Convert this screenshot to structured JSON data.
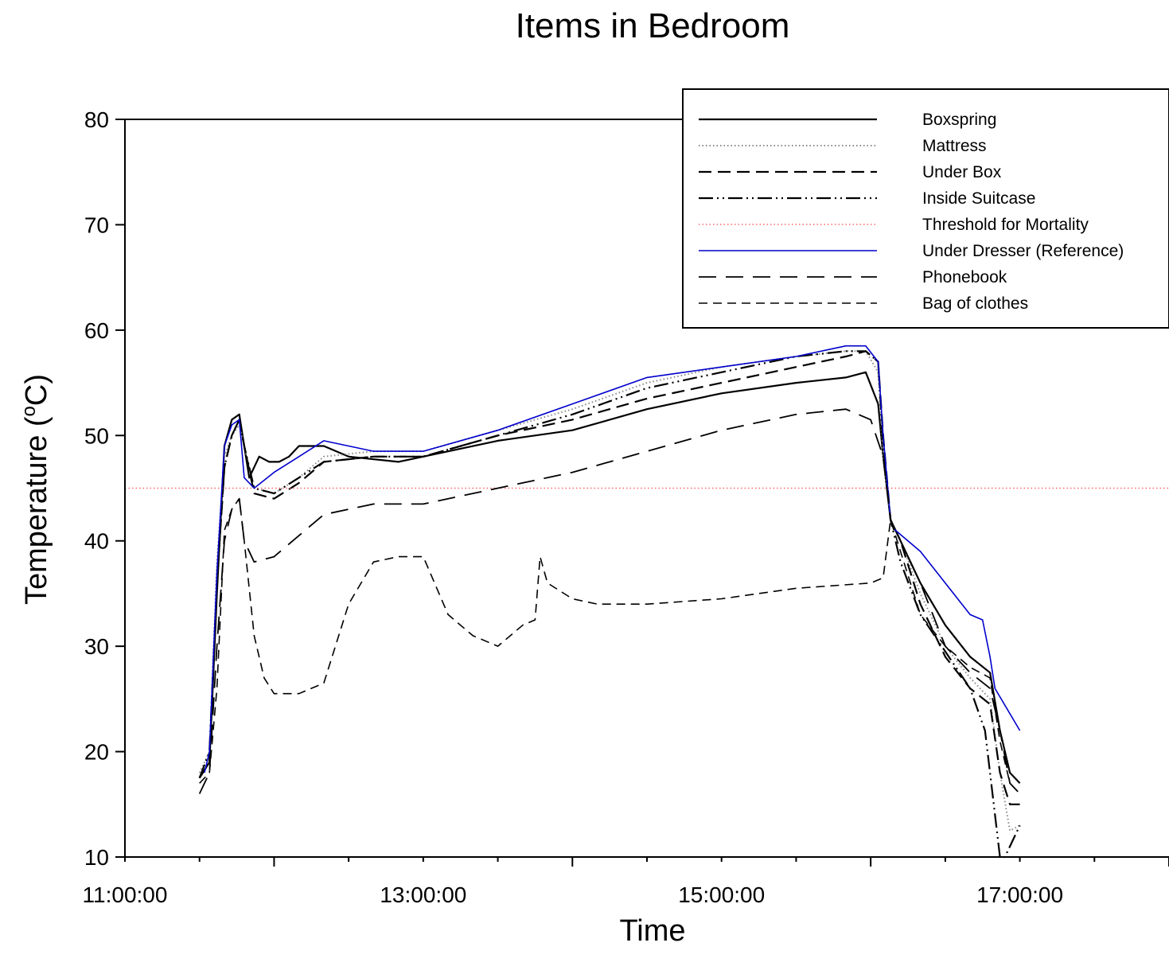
{
  "chart_data": {
    "type": "line",
    "title": "Items in Bedroom",
    "xlabel": "Time",
    "ylabel": "Temperature (°C)",
    "ylabel_parts": {
      "main": "Temperature (",
      "sup": "o",
      "unit": "C)"
    },
    "xlim": [
      "11:00:00",
      "18:00:00"
    ],
    "ylim": [
      10,
      80
    ],
    "x_ticks_major": [
      "11:00:00",
      "13:00:00",
      "15:00:00",
      "17:00:00"
    ],
    "x_tick_labels": [
      "11:00:00",
      "13:00:00",
      "15:00:00",
      "17:00:00"
    ],
    "y_ticks": [
      "10",
      "20",
      "30",
      "40",
      "50",
      "60",
      "70",
      "80"
    ],
    "grid": false,
    "legend_position": "top-right",
    "series": [
      {
        "name": "Boxspring",
        "color": "#000000",
        "dash": "none",
        "width": 2.2,
        "x": [
          "11:30",
          "11:34",
          "11:37",
          "11:40",
          "11:43",
          "11:46",
          "11:48",
          "11:50",
          "11:54",
          "11:58",
          "12:02",
          "12:06",
          "12:10",
          "12:20",
          "12:30",
          "12:50",
          "13:00",
          "13:30",
          "14:00",
          "14:30",
          "15:00",
          "15:30",
          "15:50",
          "15:58",
          "16:03",
          "16:05",
          "16:08",
          "16:12",
          "16:20",
          "16:30",
          "16:40",
          "16:48",
          "16:52",
          "16:56",
          "17:00"
        ],
        "y": [
          17.5,
          19,
          35,
          49,
          51.5,
          52,
          49,
          46,
          48,
          47.5,
          47.5,
          48,
          49,
          49,
          48,
          47.5,
          48,
          49.5,
          50.5,
          52.5,
          54,
          55,
          55.5,
          56,
          53,
          48,
          42,
          40,
          36,
          32,
          29,
          27.5,
          22,
          18,
          17
        ]
      },
      {
        "name": "Mattress",
        "color": "#888888",
        "dash": "1.5,3",
        "width": 2,
        "x": [
          "11:30",
          "11:34",
          "11:37",
          "11:40",
          "11:43",
          "11:46",
          "11:48",
          "11:52",
          "12:00",
          "12:10",
          "12:20",
          "12:40",
          "13:00",
          "13:30",
          "14:00",
          "14:30",
          "15:00",
          "15:30",
          "15:50",
          "15:58",
          "16:03",
          "16:05",
          "16:08",
          "16:12",
          "16:20",
          "16:30",
          "16:40",
          "16:48",
          "16:52",
          "16:56",
          "17:00"
        ],
        "y": [
          18,
          20,
          38,
          48,
          50,
          51,
          49,
          45,
          44.5,
          46,
          48,
          48.5,
          48.5,
          50.5,
          52.5,
          55,
          56.5,
          57.5,
          58,
          58,
          56,
          48,
          42,
          40,
          35,
          30,
          27,
          25,
          18,
          12.5,
          13
        ]
      },
      {
        "name": "Under Box",
        "color": "#000000",
        "dash": "16,8",
        "width": 2.2,
        "x": [
          "11:30",
          "11:34",
          "11:37",
          "11:40",
          "11:43",
          "11:46",
          "11:48",
          "11:52",
          "12:00",
          "12:10",
          "12:20",
          "12:40",
          "13:00",
          "13:30",
          "14:00",
          "14:30",
          "15:00",
          "15:30",
          "15:50",
          "15:58",
          "16:03",
          "16:05",
          "16:08",
          "16:12",
          "16:20",
          "16:30",
          "16:40",
          "16:48",
          "16:52",
          "16:56",
          "17:00"
        ],
        "y": [
          17.5,
          19,
          36,
          47,
          50,
          51.5,
          49,
          44.5,
          44,
          45.5,
          47.5,
          48,
          48,
          50,
          51.5,
          53.5,
          55,
          56.5,
          57.5,
          58,
          57,
          50,
          42,
          40,
          34,
          29,
          26,
          24.5,
          18,
          15,
          15
        ]
      },
      {
        "name": "Inside Suitcase",
        "color": "#000000",
        "dash": "18,5,2,5,2,5",
        "width": 2.2,
        "x": [
          "11:30",
          "11:34",
          "11:37",
          "11:40",
          "11:43",
          "11:46",
          "11:48",
          "11:52",
          "12:00",
          "12:10",
          "12:20",
          "12:40",
          "13:00",
          "13:30",
          "14:00",
          "14:30",
          "15:00",
          "15:30",
          "15:50",
          "15:58",
          "16:03",
          "16:05",
          "16:08",
          "16:12",
          "16:20",
          "16:30",
          "16:40",
          "16:46",
          "16:48",
          "16:52",
          "16:54",
          "16:58",
          "17:00"
        ],
        "y": [
          17.5,
          20,
          36,
          47,
          50,
          51.5,
          49,
          45,
          44.5,
          46,
          47.5,
          48,
          48,
          50,
          52,
          54.5,
          56,
          57.5,
          58,
          58,
          57,
          49,
          42,
          38,
          33,
          29.5,
          26,
          22,
          18,
          10,
          10,
          12,
          13
        ]
      },
      {
        "name": "Threshold for Mortality",
        "color": "#ff6666",
        "dash": "1.5,3",
        "width": 1.5,
        "x": [
          "11:00",
          "18:00"
        ],
        "y": [
          45,
          45
        ]
      },
      {
        "name": "Under Dresser (Reference)",
        "color": "#0000cc",
        "dash": "none",
        "width": 1.6,
        "x": [
          "11:32",
          "11:34",
          "11:37",
          "11:40",
          "11:43",
          "11:46",
          "11:48",
          "11:52",
          "12:00",
          "12:10",
          "12:20",
          "12:40",
          "13:00",
          "13:30",
          "14:00",
          "14:30",
          "15:00",
          "15:30",
          "15:50",
          "15:58",
          "16:03",
          "16:05",
          "16:08",
          "16:10",
          "16:20",
          "16:30",
          "16:40",
          "16:45",
          "16:48",
          "16:50",
          "17:00"
        ],
        "y": [
          18,
          20,
          37,
          49,
          51,
          51.5,
          46,
          45,
          46.5,
          48,
          49.5,
          48.5,
          48.5,
          50.5,
          53,
          55.5,
          56.5,
          57.5,
          58.5,
          58.5,
          57,
          50,
          42,
          41,
          39,
          36,
          33,
          32.5,
          29,
          26,
          22
        ]
      },
      {
        "name": "Phonebook",
        "color": "#000000",
        "dash": "22,12",
        "width": 1.8,
        "x": [
          "11:30",
          "11:34",
          "11:37",
          "11:40",
          "11:43",
          "11:46",
          "11:48",
          "11:52",
          "12:00",
          "12:10",
          "12:20",
          "12:40",
          "13:00",
          "13:30",
          "14:00",
          "14:30",
          "15:00",
          "15:30",
          "15:50",
          "16:00",
          "16:05",
          "16:08",
          "16:12",
          "16:20",
          "16:30",
          "16:40",
          "16:48",
          "16:52",
          "16:56",
          "17:00"
        ],
        "y": [
          16,
          18,
          30,
          40,
          43,
          44,
          40,
          38,
          38.5,
          40.5,
          42.5,
          43.5,
          43.5,
          45,
          46.5,
          48.5,
          50.5,
          52,
          52.5,
          51.5,
          48,
          42,
          40,
          36,
          30,
          27.5,
          26,
          22,
          17,
          16
        ]
      },
      {
        "name": "Bag of clothes",
        "color": "#000000",
        "dash": "11,7",
        "width": 1.6,
        "x": [
          "11:30",
          "11:34",
          "11:37",
          "11:40",
          "11:43",
          "11:46",
          "11:48",
          "11:52",
          "11:56",
          "12:00",
          "12:10",
          "12:20",
          "12:30",
          "12:40",
          "12:50",
          "13:00",
          "13:10",
          "13:20",
          "13:30",
          "13:40",
          "13:45",
          "13:47",
          "13:50",
          "14:00",
          "14:10",
          "14:30",
          "15:00",
          "15:30",
          "16:00",
          "16:05",
          "16:08",
          "16:12",
          "16:20",
          "16:30",
          "16:40",
          "16:48",
          "16:52",
          "16:56",
          "17:00"
        ],
        "y": [
          17,
          18,
          26,
          41,
          43,
          44,
          40,
          31,
          27,
          25.5,
          25.5,
          26.5,
          34,
          38,
          38.5,
          38.5,
          33,
          31,
          30,
          32,
          32.5,
          38.5,
          36,
          34.5,
          34,
          34,
          34.5,
          35.5,
          36,
          36.5,
          42,
          39,
          33,
          30,
          28,
          27,
          21,
          17,
          16
        ]
      }
    ]
  },
  "legend": {
    "items": [
      {
        "label": "Boxspring"
      },
      {
        "label": "Mattress"
      },
      {
        "label": "Under Box"
      },
      {
        "label": "Inside Suitcase"
      },
      {
        "label": "Threshold for Mortality"
      },
      {
        "label": "Under Dresser (Reference)"
      },
      {
        "label": "Phonebook"
      },
      {
        "label": "Bag of clothes"
      }
    ]
  }
}
